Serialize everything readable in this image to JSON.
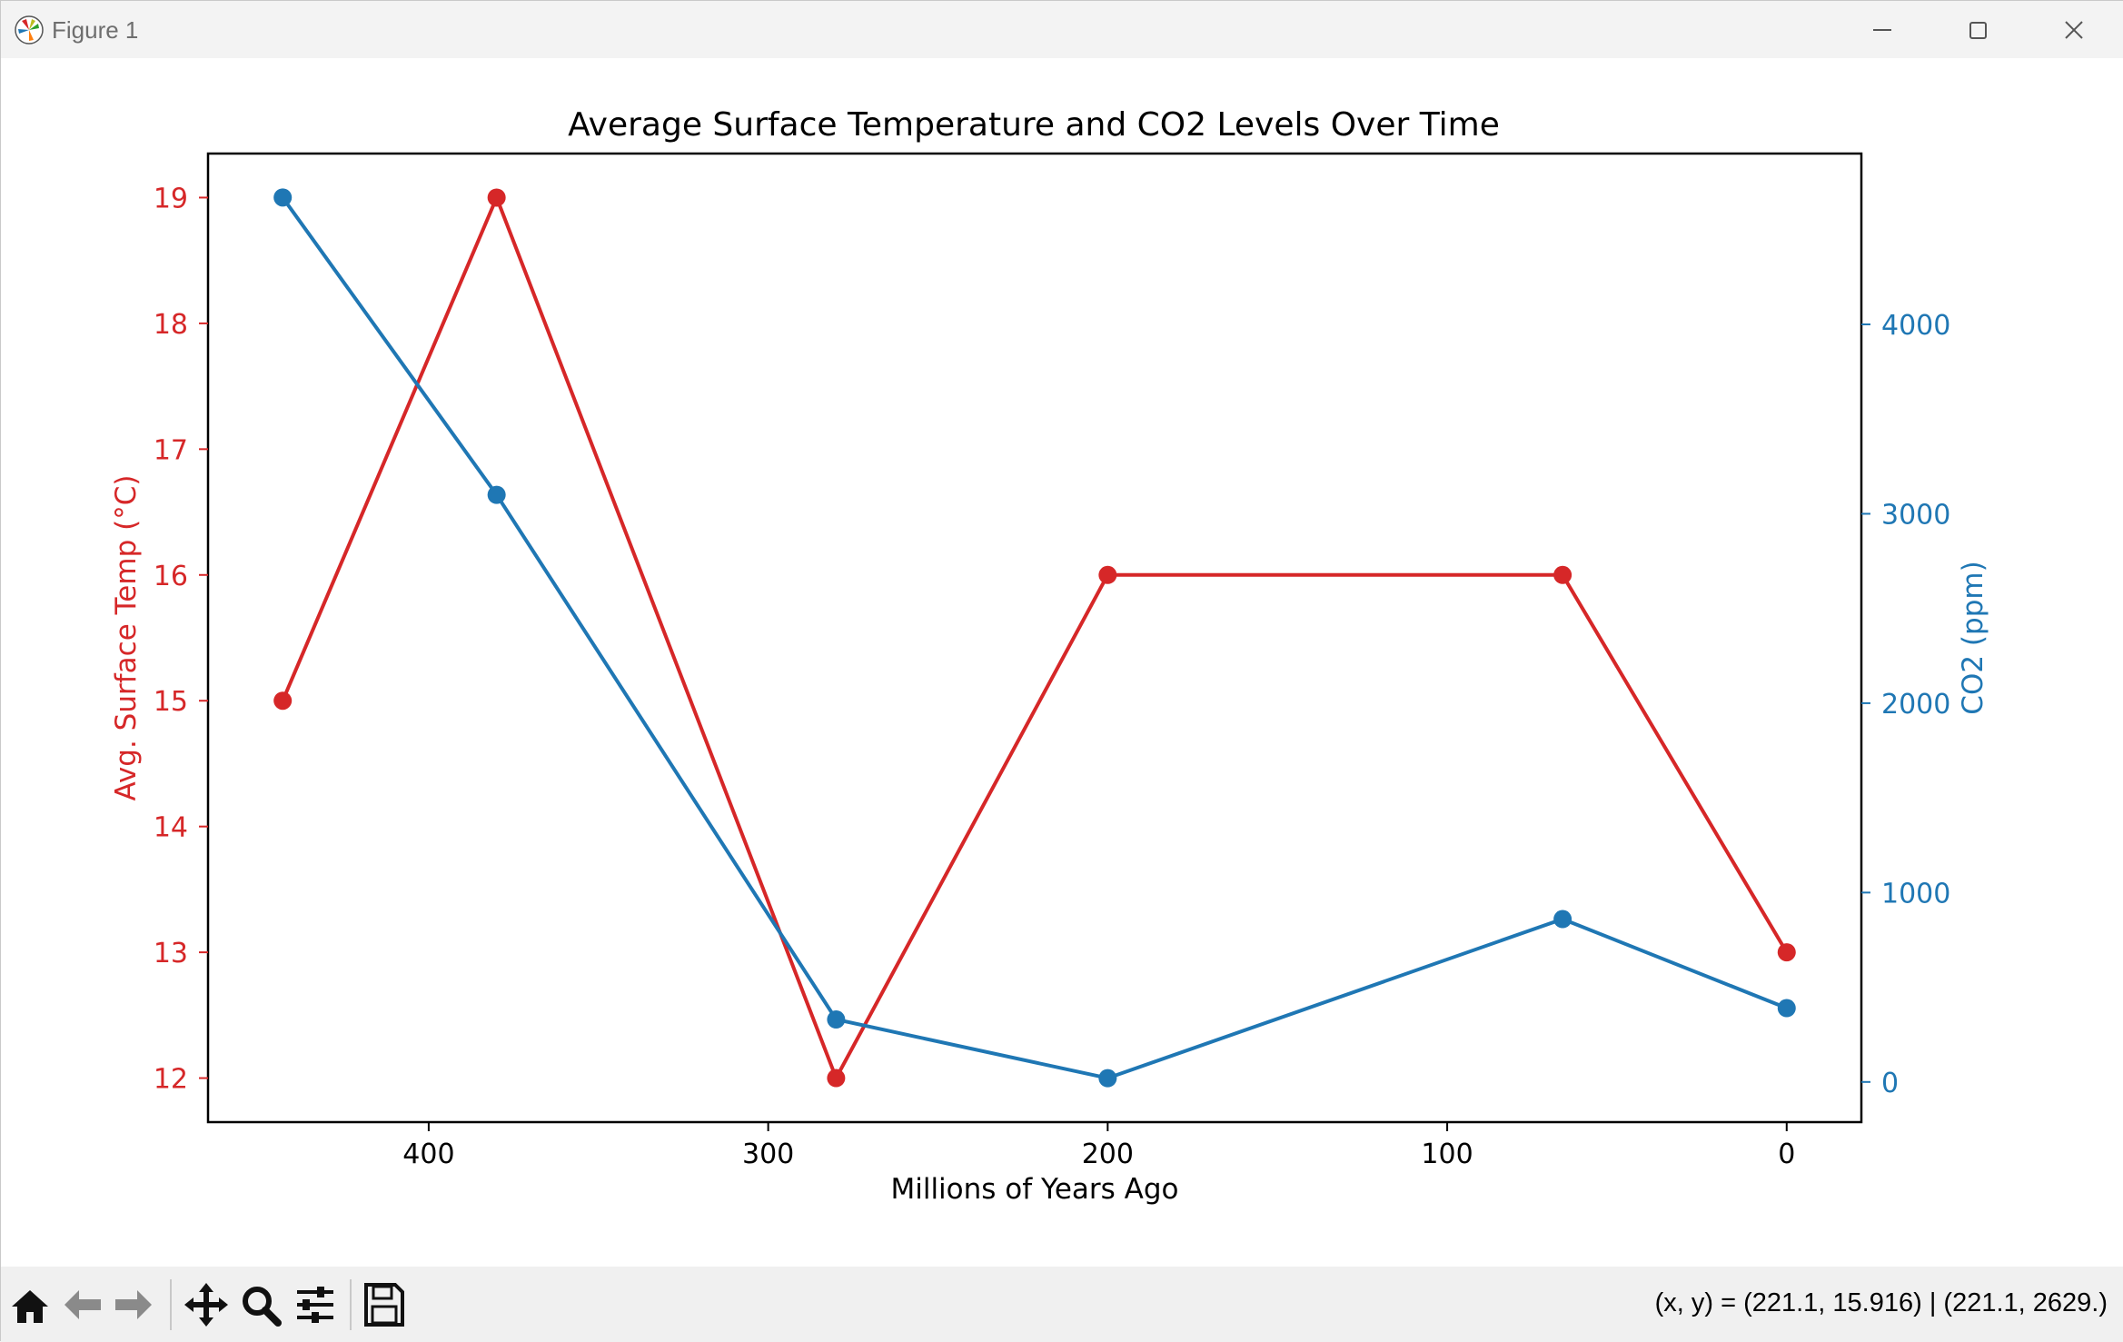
{
  "window": {
    "title": "Figure 1",
    "icon": "matplotlib-icon",
    "controls": [
      "minimize-icon",
      "maximize-icon",
      "close-icon"
    ]
  },
  "toolbar": {
    "tools": [
      "home-icon",
      "back-icon",
      "forward-icon",
      "pan-icon",
      "zoom-icon",
      "configure-subplots-icon",
      "save-icon"
    ],
    "coords": "(x, y) = (221.1, 15.916) | (221.1, 2629.)"
  },
  "chart_data": {
    "type": "line",
    "title": "Average Surface Temperature and CO2 Levels Over Time",
    "xlabel": "Millions of Years Ago",
    "x": [
      443,
      380,
      280,
      200,
      66,
      0
    ],
    "x_inverted": true,
    "xlim": [
      465,
      -22
    ],
    "xticks": [
      400,
      300,
      200,
      100,
      0
    ],
    "series": [
      {
        "name": "Avg. Surface Temp (°C)",
        "axis": "left",
        "color": "#d62728",
        "values": [
          15,
          19,
          12,
          16,
          16,
          13
        ]
      },
      {
        "name": "CO2 (ppm)",
        "axis": "right",
        "color": "#1f77b4",
        "values": [
          4670,
          3100,
          330,
          20,
          860,
          390
        ]
      }
    ],
    "ylabel_left": "Avg. Surface Temp (°C)",
    "ylim_left": [
      11.65,
      19.35
    ],
    "yticks_left": [
      12,
      13,
      14,
      15,
      16,
      17,
      18,
      19
    ],
    "ylabel_right": "CO2 (ppm)",
    "ylim_right": [
      -212,
      4902
    ],
    "yticks_right": [
      0,
      1000,
      2000,
      3000,
      4000
    ],
    "grid": false
  }
}
